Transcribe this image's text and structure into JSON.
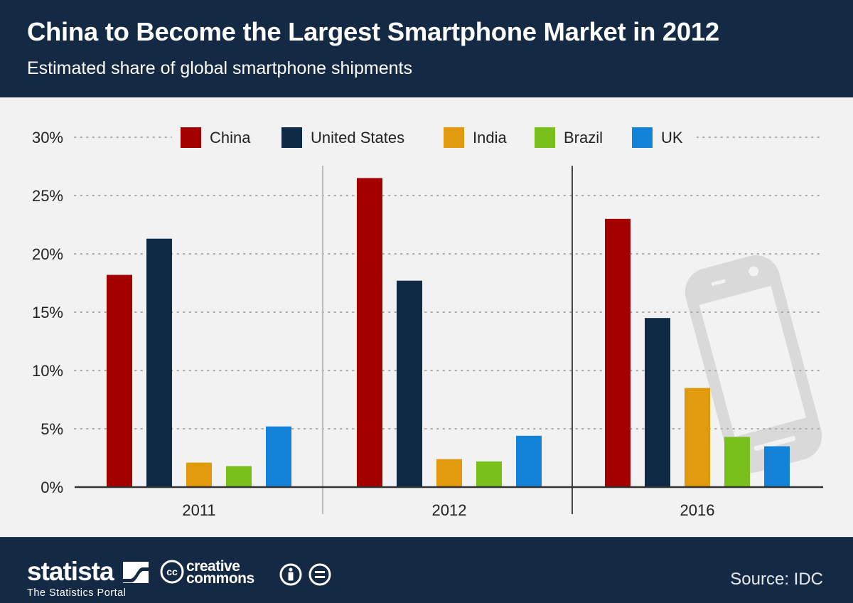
{
  "header": {
    "title": "China to Become the Largest Smartphone Market in 2012",
    "subtitle": "Estimated share of global smartphone shipments"
  },
  "footer": {
    "brand": "statista",
    "brand_tagline": "The Statistics Portal",
    "license_text_line1": "creative",
    "license_text_line2": "commons",
    "license_icons": [
      "cc-icon",
      "attribution-icon",
      "no-derivatives-icon"
    ],
    "source": "Source: IDC"
  },
  "colors": {
    "header_bg": "#142a44",
    "plot_bg": "#f2f2f2",
    "China": "#a50000",
    "United States": "#0f2a44",
    "India": "#e09a0c",
    "Brazil": "#78c11b",
    "UK": "#1283d8"
  },
  "chart_data": {
    "type": "bar",
    "title": "China to Become the Largest Smartphone Market in 2012",
    "subtitle": "Estimated share of global smartphone shipments",
    "categories": [
      "2011",
      "2012",
      "2016"
    ],
    "series": [
      {
        "name": "China",
        "values": [
          18.2,
          26.5,
          23.0
        ]
      },
      {
        "name": "United States",
        "values": [
          21.3,
          17.7,
          14.5
        ]
      },
      {
        "name": "India",
        "values": [
          2.1,
          2.4,
          8.5
        ]
      },
      {
        "name": "Brazil",
        "values": [
          1.8,
          2.2,
          4.3
        ]
      },
      {
        "name": "UK",
        "values": [
          5.2,
          4.4,
          3.5
        ]
      }
    ],
    "xlabel": "",
    "ylabel": "",
    "ylim": [
      0,
      30
    ],
    "yticks": [
      0,
      5,
      10,
      15,
      20,
      25,
      30
    ],
    "ytick_labels": [
      "0%",
      "5%",
      "10%",
      "15%",
      "20%",
      "25%",
      "30%"
    ],
    "grid": true,
    "legend_position": "top-center",
    "background_icon": "smartphone-icon"
  }
}
